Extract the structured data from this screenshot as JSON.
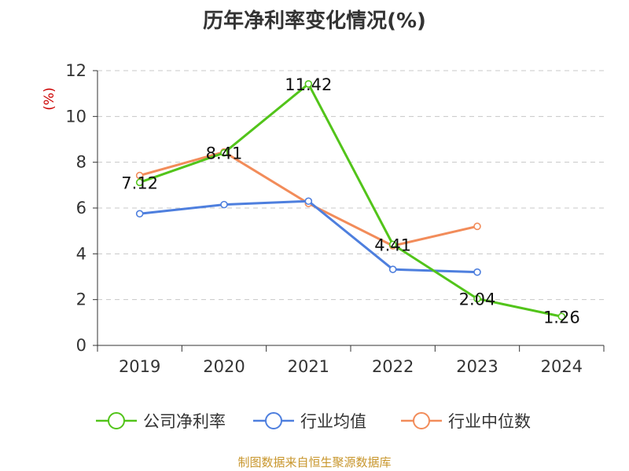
{
  "chart_data": {
    "type": "line",
    "title": "历年净利率变化情况(%)",
    "ylabel": "(%)",
    "xlabel": "",
    "categories": [
      "2019",
      "2020",
      "2021",
      "2022",
      "2023",
      "2024"
    ],
    "ylim": [
      0,
      12
    ],
    "yticks": [
      0,
      2,
      4,
      6,
      8,
      10,
      12
    ],
    "grid": true,
    "legend_position": "bottom",
    "series": [
      {
        "name": "公司净利率",
        "color": "#52c41a",
        "values": [
          7.12,
          8.41,
          11.42,
          4.41,
          2.04,
          1.26
        ],
        "data_labels": [
          "7.12",
          "8.41",
          "11.42",
          "4.41",
          "2.04",
          "1.26"
        ]
      },
      {
        "name": "行业均值",
        "color": "#4e7fde",
        "values": [
          5.75,
          6.15,
          6.3,
          3.32,
          3.2,
          null
        ]
      },
      {
        "name": "行业中位数",
        "color": "#f28c5a",
        "values": [
          7.42,
          8.45,
          6.2,
          4.35,
          5.2,
          null
        ]
      }
    ]
  },
  "footer": {
    "source": "制图数据来自恒生聚源数据库"
  }
}
